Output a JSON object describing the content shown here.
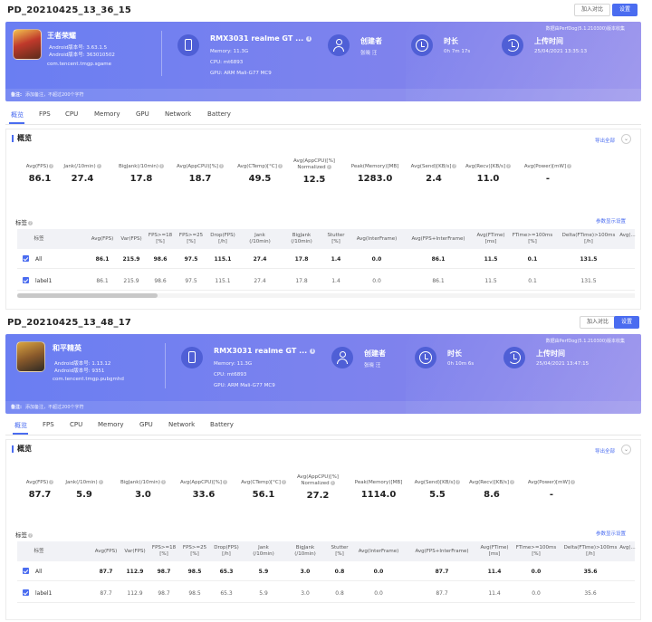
{
  "reports": [
    {
      "title": "PD_20210425_13_36_15",
      "compare_btn": "加入对比",
      "settings_btn": "设置",
      "source_note": "数据由PerfDog(5.1.210300)版本收集",
      "app": {
        "name": "王者荣耀",
        "android_version": "Android版本号: 3.63.1.5",
        "android_code": "Android版本号: 363010502",
        "package": "com.tencent.tmgp.sgame"
      },
      "device": {
        "model": "RMX3031 realme GT ...",
        "memory": "Memory: 11.3G",
        "cpu": "CPU: mt6893",
        "gpu": "GPU: ARM Mali-G77 MC9"
      },
      "creator_label": "创建者",
      "creator_value": "张晓 汪",
      "duration_label": "时长",
      "duration_value": "0h 7m 17s",
      "upload_label": "上传时间",
      "upload_value": "25/04/2021 13:35:13",
      "note_label": "备注:",
      "note_text": "添加备注，不超过200个字符",
      "tabs": [
        "概览",
        "FPS",
        "CPU",
        "Memory",
        "GPU",
        "Network",
        "Battery"
      ],
      "overview_title": "概览",
      "export_label": "导出全部",
      "metrics": [
        {
          "label": "Avg(FPS)",
          "value": "86.1"
        },
        {
          "label": "Jank(/10min)",
          "value": "27.4"
        },
        {
          "label": "BigJank(/10min)",
          "value": "17.8"
        },
        {
          "label": "Avg(AppCPU)[%]",
          "value": "18.7"
        },
        {
          "label": "Avg(CTemp)[°C]",
          "value": "49.5"
        },
        {
          "label": "Avg(AppCPU)[%] Normalized",
          "value": "12.5"
        },
        {
          "label": "Peak(Memory)[MB]",
          "value": "1283.0"
        },
        {
          "label": "Avg(Send)[KB/s]",
          "value": "2.4"
        },
        {
          "label": "Avg(Recv)[KB/s]",
          "value": "11.0"
        },
        {
          "label": "Avg(Power)[mW]",
          "value": "-"
        }
      ],
      "tags_label": "标签",
      "tags_config": "参数显示设置",
      "table": {
        "headers": [
          "标签",
          "Avg(FPS)",
          "Var(FPS)",
          "FPS>=18 [%]",
          "FPS>=25 [%]",
          "Drop(FPS) [/h]",
          "Jank (/10min)",
          "BigJank (/10min)",
          "Stutter [%]",
          "Avg(InterFrame)",
          "Avg(FPS+InterFrame)",
          "Avg(FTime) [ms]",
          "FTime>=100ms [%]",
          "Delta(FTime)>100ms [/h]",
          "Avg(..."
        ],
        "rows": [
          {
            "label": "All",
            "cells": [
              "86.1",
              "215.9",
              "98.6",
              "97.5",
              "115.1",
              "27.4",
              "17.8",
              "1.4",
              "0.0",
              "86.1",
              "11.5",
              "0.1",
              "131.5"
            ]
          },
          {
            "label": "label1",
            "cells": [
              "86.1",
              "215.9",
              "98.6",
              "97.5",
              "115.1",
              "27.4",
              "17.8",
              "1.4",
              "0.0",
              "86.1",
              "11.5",
              "0.1",
              "131.5"
            ]
          }
        ]
      }
    },
    {
      "title": "PD_20210425_13_48_17",
      "compare_btn": "加入对比",
      "settings_btn": "设置",
      "source_note": "数据由PerfDog(5.1.210300)版本收集",
      "app": {
        "name": "和平精英",
        "android_version": "Android版本号: 1.13.12",
        "android_code": "Android版本号: 9351",
        "package": "com.tencent.tmgp.pubgmhd"
      },
      "device": {
        "model": "RMX3031 realme GT ...",
        "memory": "Memory: 11.3G",
        "cpu": "CPU: mt6893",
        "gpu": "GPU: ARM Mali-G77 MC9"
      },
      "creator_label": "创建者",
      "creator_value": "张晓 汪",
      "duration_label": "时长",
      "duration_value": "0h 10m 6s",
      "upload_label": "上传时间",
      "upload_value": "25/04/2021 13:47:15",
      "note_label": "备注:",
      "note_text": "添加备注，不超过200个字符",
      "tabs": [
        "概览",
        "FPS",
        "CPU",
        "Memory",
        "GPU",
        "Network",
        "Battery"
      ],
      "overview_title": "概览",
      "export_label": "导出全部",
      "metrics": [
        {
          "label": "Avg(FPS)",
          "value": "87.7"
        },
        {
          "label": "Jank(/10min)",
          "value": "5.9"
        },
        {
          "label": "BigJank(/10min)",
          "value": "3.0"
        },
        {
          "label": "Avg(AppCPU)[%]",
          "value": "33.6"
        },
        {
          "label": "Avg(CTemp)[°C]",
          "value": "56.1"
        },
        {
          "label": "Avg(AppCPU)[%] Normalized",
          "value": "27.2"
        },
        {
          "label": "Peak(Memory)[MB]",
          "value": "1114.0"
        },
        {
          "label": "Avg(Send)[KB/s]",
          "value": "5.5"
        },
        {
          "label": "Avg(Recv)[KB/s]",
          "value": "8.6"
        },
        {
          "label": "Avg(Power)[mW]",
          "value": "-"
        }
      ],
      "tags_label": "标签",
      "tags_config": "参数显示设置",
      "table": {
        "headers": [
          "标签",
          "Avg(FPS)",
          "Var(FPS)",
          "FPS>=18 [%]",
          "FPS>=25 [%]",
          "Drop(FPS) [/h]",
          "Jank (/10min)",
          "BigJank (/10min)",
          "Stutter [%]",
          "Avg(InterFrame)",
          "Avg(FPS+InterFrame)",
          "Avg(FTime) [ms]",
          "FTime>=100ms [%]",
          "Delta(FTime)>100ms [/h]",
          "Avg(..."
        ],
        "rows": [
          {
            "label": "All",
            "cells": [
              "87.7",
              "112.9",
              "98.7",
              "98.5",
              "65.3",
              "5.9",
              "3.0",
              "0.8",
              "0.0",
              "87.7",
              "11.4",
              "0.0",
              "35.6"
            ]
          },
          {
            "label": "label1",
            "cells": [
              "87.7",
              "112.9",
              "98.7",
              "98.5",
              "65.3",
              "5.9",
              "3.0",
              "0.8",
              "0.0",
              "87.7",
              "11.4",
              "0.0",
              "35.6"
            ]
          }
        ]
      }
    }
  ]
}
